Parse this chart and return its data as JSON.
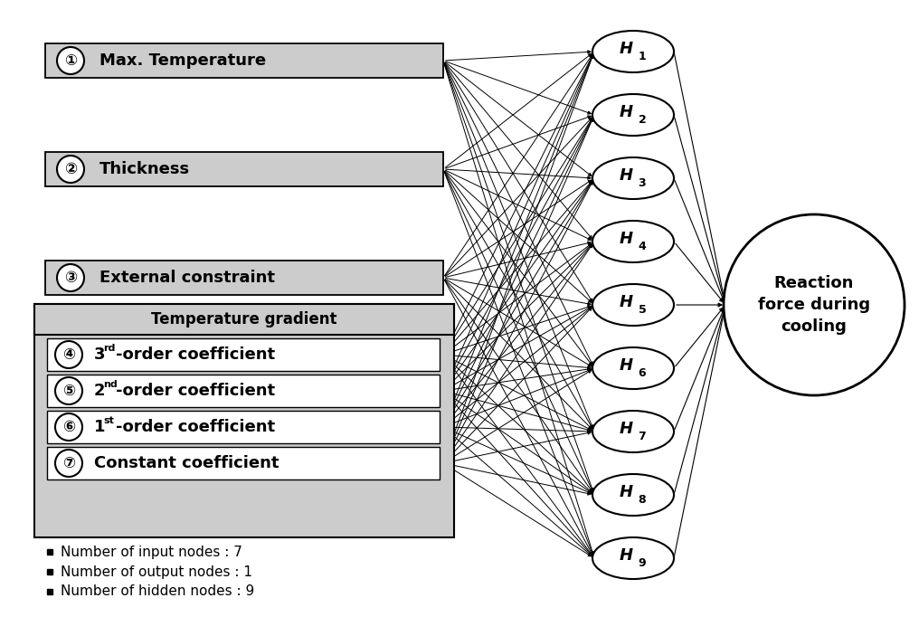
{
  "input_labels_top3": [
    {
      "num": "①",
      "text": "Max. Temperature"
    },
    {
      "num": "②",
      "text": "Thickness"
    },
    {
      "num": "③",
      "text": "External constraint"
    }
  ],
  "input_labels_group": [
    {
      "num": "④",
      "text4": "3",
      "sup": "rd",
      "rest": "-order coefficient"
    },
    {
      "num": "⑤",
      "text4": "2",
      "sup": "nd",
      "rest": "-order coefficient"
    },
    {
      "num": "⑥",
      "text4": "1",
      "sup": "st",
      "rest": "-order coefficient"
    },
    {
      "num": "⑦",
      "text": "Constant coefficient"
    }
  ],
  "group_label": "Temperature gradient",
  "output_label": "Reaction\nforce during\ncooling",
  "legend_lines": [
    "Number of input nodes : 7",
    "Number of output nodes : 1",
    "Number of hidden nodes : 9"
  ],
  "bg_color": "#ffffff",
  "box_fill": "#cccccc",
  "box_edge": "#000000",
  "node_fill": "#ffffff",
  "node_edge": "#000000",
  "line_color": "#000000",
  "n_hidden": 9
}
